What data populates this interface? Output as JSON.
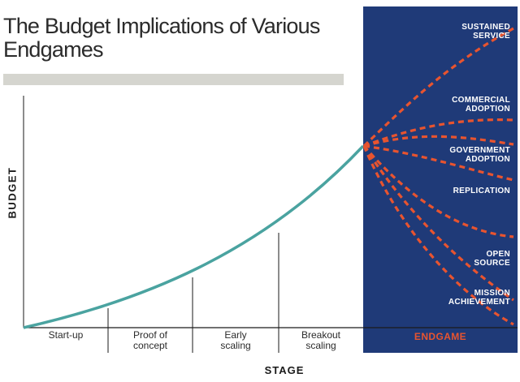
{
  "title": "The Budget Implications of Various Endgames",
  "y_axis_label": "BUDGET",
  "x_axis_label": "STAGE",
  "stages": [
    "Start-up",
    "Proof of\nconcept",
    "Early\nscaling",
    "Breakout\nscaling"
  ],
  "endgame_label": "ENDGAME",
  "outcomes": [
    "SUSTAINED\nSERVICE",
    "COMMERCIAL\nADOPTION",
    "GOVERNMENT\nADOPTION",
    "REPLICATION",
    "OPEN\nSOURCE",
    "MISSION\nACHIEVEMENT"
  ],
  "colors": {
    "curve": "#4aa3a0",
    "panel": "#1f3a78",
    "dashed": "#e8542f",
    "bar": "#d5d5cf"
  }
}
